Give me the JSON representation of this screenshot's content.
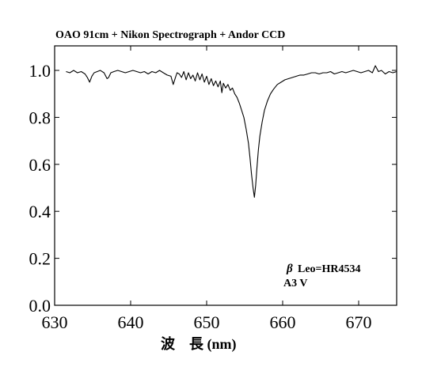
{
  "chart_data": {
    "type": "line",
    "title": "OAO 91cm + Nikon Spectrograph + Andor CCD",
    "xlabel": "波　長 (nm)",
    "ylabel": "",
    "xlim": [
      630,
      675
    ],
    "ylim": [
      0.0,
      1.0
    ],
    "xticks": [
      630,
      640,
      650,
      660,
      670
    ],
    "xtick_labels": [
      "630",
      "640",
      "650",
      "660",
      "670"
    ],
    "yticks": [
      0.0,
      0.2,
      0.4,
      0.6,
      0.8,
      1.0
    ],
    "ytick_labels": [
      "0.0",
      "0.2",
      "0.4",
      "0.6",
      "0.8",
      "1.0"
    ],
    "grid": false,
    "annotations": {
      "star_symbol": "β",
      "star_name": "Leo=HR4534",
      "spectral_type": "A3 V"
    },
    "series": [
      {
        "x": [
          631.5,
          632.0,
          632.5,
          633.0,
          633.5,
          634.0,
          634.3,
          634.6,
          634.9,
          635.2,
          635.6,
          636.0,
          636.5,
          636.9,
          637.1,
          637.4,
          637.8,
          638.3,
          638.8,
          639.3,
          639.8,
          640.3,
          640.8,
          641.3,
          641.8,
          642.3,
          642.8,
          643.3,
          643.8,
          644.3,
          644.8,
          645.3,
          645.6,
          645.9,
          646.1,
          646.4,
          646.7,
          647.0,
          647.3,
          647.6,
          647.9,
          648.2,
          648.5,
          648.8,
          649.1,
          649.4,
          649.7,
          650.0,
          650.3,
          650.6,
          650.9,
          651.2,
          651.5,
          651.8,
          652.0,
          652.2,
          652.5,
          652.8,
          653.1,
          653.4,
          653.7,
          654.0,
          654.3,
          654.6,
          654.9,
          655.2,
          655.5,
          655.7,
          655.9,
          656.1,
          656.28,
          656.45,
          656.6,
          656.8,
          657.0,
          657.3,
          657.6,
          658.0,
          658.4,
          658.8,
          659.3,
          659.8,
          660.3,
          660.8,
          661.3,
          661.8,
          662.3,
          662.8,
          663.3,
          663.8,
          664.3,
          664.8,
          665.3,
          665.8,
          666.3,
          666.8,
          667.3,
          667.8,
          668.3,
          668.8,
          669.3,
          669.8,
          670.3,
          670.8,
          671.3,
          671.8,
          672.2,
          672.6,
          673.0,
          673.5,
          674.0,
          674.5,
          675.0
        ],
        "y": [
          0.995,
          0.99,
          1.0,
          0.99,
          0.995,
          0.985,
          0.97,
          0.95,
          0.975,
          0.99,
          0.995,
          1.0,
          0.99,
          0.965,
          0.97,
          0.99,
          0.995,
          1.0,
          0.995,
          0.99,
          0.995,
          1.0,
          0.995,
          0.99,
          0.995,
          0.985,
          0.995,
          0.99,
          1.0,
          0.99,
          0.98,
          0.975,
          0.94,
          0.97,
          0.99,
          0.985,
          0.97,
          0.995,
          0.96,
          0.99,
          0.965,
          0.98,
          0.955,
          0.99,
          0.96,
          0.985,
          0.95,
          0.975,
          0.94,
          0.965,
          0.935,
          0.955,
          0.93,
          0.955,
          0.905,
          0.945,
          0.925,
          0.94,
          0.915,
          0.925,
          0.9,
          0.885,
          0.86,
          0.83,
          0.8,
          0.75,
          0.69,
          0.63,
          0.56,
          0.5,
          0.46,
          0.51,
          0.58,
          0.66,
          0.72,
          0.78,
          0.83,
          0.87,
          0.9,
          0.92,
          0.94,
          0.95,
          0.96,
          0.965,
          0.97,
          0.975,
          0.98,
          0.98,
          0.985,
          0.99,
          0.99,
          0.985,
          0.99,
          0.99,
          0.995,
          0.985,
          0.99,
          0.995,
          0.99,
          0.995,
          1.0,
          0.995,
          0.99,
          0.995,
          1.0,
          0.99,
          1.02,
          0.995,
          1.0,
          0.985,
          0.995,
          0.99,
          0.995
        ]
      }
    ]
  }
}
